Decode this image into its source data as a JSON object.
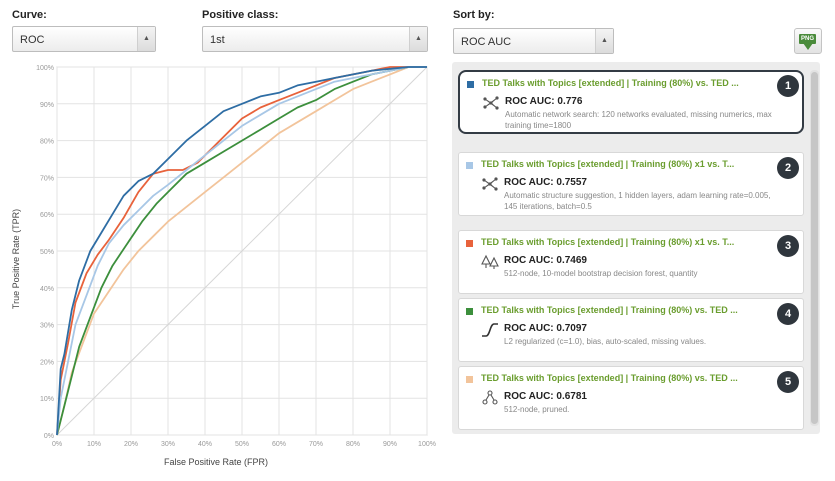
{
  "controls": {
    "curve_label": "Curve:",
    "curve_value": "ROC",
    "positive_class_label": "Positive class:",
    "positive_class_value": "1st",
    "sort_by_label": "Sort by:",
    "sort_by_value": "ROC AUC",
    "export_label": "PNG"
  },
  "chart_data": {
    "type": "line",
    "xlabel": "False Positive Rate (FPR)",
    "ylabel": "True Positive Rate (TPR)",
    "xlim": [
      0,
      1
    ],
    "ylim": [
      0,
      1
    ],
    "xticks": [
      "0%",
      "10%",
      "20%",
      "30%",
      "40%",
      "50%",
      "60%",
      "70%",
      "80%",
      "90%",
      "100%"
    ],
    "yticks": [
      "0%",
      "10%",
      "20%",
      "30%",
      "40%",
      "50%",
      "60%",
      "70%",
      "80%",
      "90%",
      "100%"
    ],
    "grid": true,
    "diagonal": true,
    "series": [
      {
        "color": "#2e6da4",
        "x": [
          0,
          0.01,
          0.02,
          0.04,
          0.06,
          0.09,
          0.12,
          0.15,
          0.18,
          0.22,
          0.26,
          0.3,
          0.35,
          0.4,
          0.45,
          0.5,
          0.55,
          0.6,
          0.65,
          0.7,
          0.75,
          0.8,
          0.85,
          0.9,
          0.95,
          1.0
        ],
        "y": [
          0,
          0.18,
          0.22,
          0.34,
          0.42,
          0.5,
          0.55,
          0.6,
          0.65,
          0.69,
          0.71,
          0.75,
          0.8,
          0.84,
          0.88,
          0.9,
          0.92,
          0.93,
          0.95,
          0.96,
          0.97,
          0.98,
          0.99,
          0.995,
          1.0,
          1.0
        ]
      },
      {
        "color": "#a8c7e6",
        "x": [
          0,
          0.01,
          0.03,
          0.05,
          0.08,
          0.11,
          0.14,
          0.18,
          0.22,
          0.26,
          0.3,
          0.35,
          0.4,
          0.45,
          0.5,
          0.55,
          0.6,
          0.65,
          0.7,
          0.75,
          0.8,
          0.85,
          0.9,
          0.95,
          1.0
        ],
        "y": [
          0,
          0.1,
          0.2,
          0.3,
          0.38,
          0.46,
          0.52,
          0.57,
          0.61,
          0.65,
          0.68,
          0.72,
          0.76,
          0.8,
          0.84,
          0.87,
          0.9,
          0.92,
          0.94,
          0.96,
          0.97,
          0.98,
          0.99,
          1.0,
          1.0
        ]
      },
      {
        "color": "#e8623b",
        "x": [
          0,
          0.01,
          0.03,
          0.05,
          0.08,
          0.11,
          0.14,
          0.18,
          0.22,
          0.26,
          0.3,
          0.34,
          0.38,
          0.42,
          0.46,
          0.5,
          0.55,
          0.6,
          0.65,
          0.7,
          0.75,
          0.8,
          0.85,
          0.9,
          0.95,
          1.0
        ],
        "y": [
          0,
          0.15,
          0.25,
          0.36,
          0.44,
          0.49,
          0.53,
          0.59,
          0.66,
          0.71,
          0.72,
          0.72,
          0.74,
          0.78,
          0.82,
          0.86,
          0.89,
          0.91,
          0.93,
          0.95,
          0.97,
          0.98,
          0.99,
          1.0,
          1.0,
          1.0
        ]
      },
      {
        "color": "#3c8f3c",
        "x": [
          0,
          0.02,
          0.04,
          0.06,
          0.09,
          0.12,
          0.15,
          0.19,
          0.23,
          0.27,
          0.31,
          0.35,
          0.4,
          0.45,
          0.5,
          0.55,
          0.6,
          0.65,
          0.7,
          0.75,
          0.8,
          0.85,
          0.9,
          0.95,
          1.0
        ],
        "y": [
          0,
          0.08,
          0.16,
          0.24,
          0.32,
          0.4,
          0.46,
          0.52,
          0.58,
          0.63,
          0.67,
          0.71,
          0.74,
          0.77,
          0.8,
          0.83,
          0.86,
          0.89,
          0.91,
          0.94,
          0.96,
          0.98,
          0.99,
          1.0,
          1.0
        ]
      },
      {
        "color": "#f2c49b",
        "x": [
          0,
          0.02,
          0.04,
          0.07,
          0.1,
          0.14,
          0.18,
          0.22,
          0.26,
          0.3,
          0.35,
          0.4,
          0.45,
          0.5,
          0.55,
          0.6,
          0.65,
          0.7,
          0.75,
          0.8,
          0.85,
          0.9,
          0.95,
          1.0
        ],
        "y": [
          0,
          0.08,
          0.17,
          0.25,
          0.33,
          0.39,
          0.45,
          0.5,
          0.54,
          0.58,
          0.62,
          0.66,
          0.7,
          0.74,
          0.78,
          0.82,
          0.85,
          0.88,
          0.91,
          0.94,
          0.96,
          0.98,
          1.0,
          1.0
        ]
      }
    ]
  },
  "models": [
    {
      "rank": "1",
      "color": "#2e6da4",
      "icon": "network-icon",
      "title": "TED Talks with Topics [extended] | Training (80%) vs. TED ...",
      "auc": "ROC AUC: 0.776",
      "desc": "Automatic network search: 120 networks evaluated, missing numerics, max training time=1800"
    },
    {
      "rank": "2",
      "color": "#a8c7e6",
      "icon": "network-icon",
      "title": "TED Talks with Topics [extended] | Training (80%) x1 vs. T...",
      "auc": "ROC AUC: 0.7557",
      "desc": "Automatic structure suggestion, 1 hidden layers, adam learning rate=0.005, 145 iterations, batch=0.5"
    },
    {
      "rank": "3",
      "color": "#e8623b",
      "icon": "forest-icon",
      "title": "TED Talks with Topics [extended] | Training (80%) x1 vs. T...",
      "auc": "ROC AUC: 0.7469",
      "desc": "512-node, 10-model bootstrap decision forest, quantity"
    },
    {
      "rank": "4",
      "color": "#3c8f3c",
      "icon": "logistic-icon",
      "title": "TED Talks with Topics [extended] | Training (80%) vs. TED ...",
      "auc": "ROC AUC: 0.7097",
      "desc": "L2 regularized (c=1.0), bias, auto-scaled, missing values."
    },
    {
      "rank": "5",
      "color": "#f2c49b",
      "icon": "tree-icon",
      "title": "TED Talks with Topics [extended] | Training (80%) vs. TED ...",
      "auc": "ROC AUC: 0.6781",
      "desc": "512-node, pruned."
    }
  ]
}
